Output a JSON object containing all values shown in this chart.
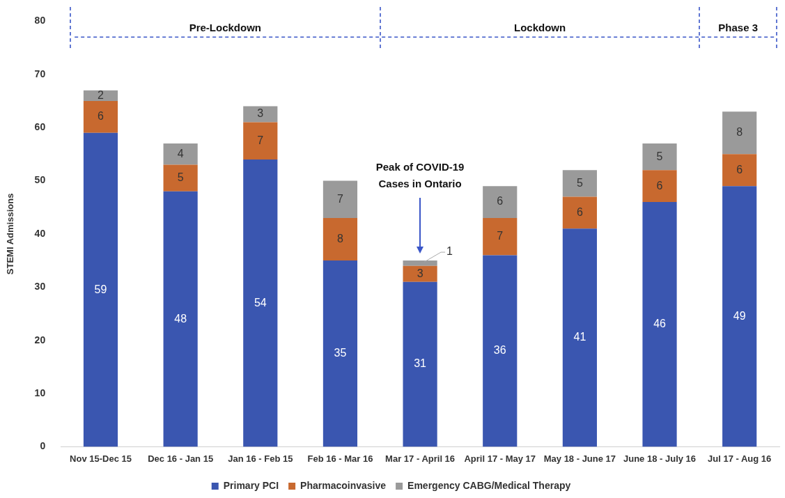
{
  "chart_data": {
    "type": "bar",
    "stacked": true,
    "ylabel": "STEMI Admissions",
    "categories": [
      "Nov 15-Dec 15",
      "Dec 16 - Jan 15",
      "Jan 16 - Feb 15",
      "Feb 16 - Mar 16",
      "Mar 17 - April 16",
      "April 17 - May 17",
      "May 18 - June 17",
      "June 18 - July 16",
      "Jul 17 - Aug 16"
    ],
    "series": [
      {
        "name": "Primary PCI",
        "color": "#3a56b0",
        "values": [
          59,
          48,
          54,
          35,
          31,
          36,
          41,
          46,
          49
        ]
      },
      {
        "name": "Pharmacoinvasive",
        "color": "#c8692f",
        "values": [
          6,
          5,
          7,
          8,
          3,
          7,
          6,
          6,
          6
        ]
      },
      {
        "name": "Emergency CABG/Medical Therapy",
        "color": "#9a9a9a",
        "values": [
          2,
          4,
          3,
          7,
          1,
          6,
          5,
          5,
          8
        ]
      }
    ],
    "ref_lines": [
      {
        "axis": "y",
        "value": 77,
        "color": "#3a56c8",
        "line_style": "dashed"
      }
    ],
    "ylim": [
      0,
      80
    ],
    "yticks": [
      0,
      10,
      20,
      30,
      40,
      50,
      60,
      70,
      80
    ],
    "legend": "bottom",
    "data_labels": true,
    "annotations": [
      "Pre-Lockdown",
      "Lockdown",
      "Phase 3",
      "Peak of COVID-19\nCases in Ontario"
    ]
  }
}
